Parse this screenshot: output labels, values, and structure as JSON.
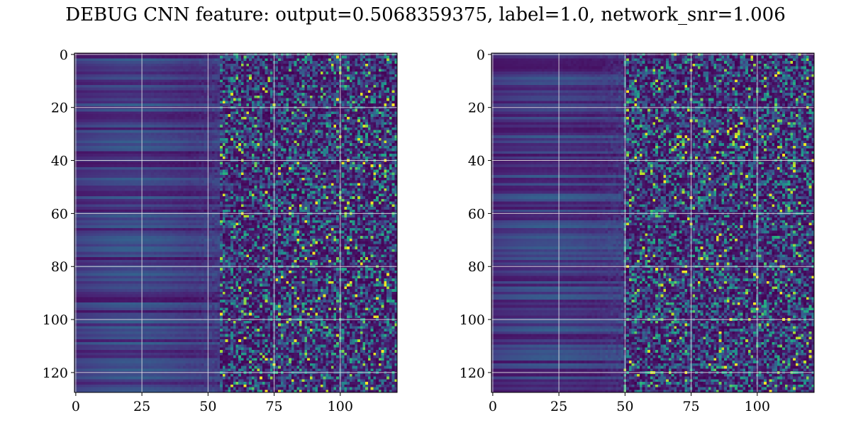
{
  "figure": {
    "title": "DEBUG CNN feature: output=0.5068359375, label=1.0, network_snr=1.006"
  },
  "colors": {
    "colormap": "viridis",
    "grid": "#e6e6e6",
    "axis": "#000000",
    "background": "#ffffff"
  },
  "chart_data": [
    {
      "type": "heatmap",
      "panel": "left",
      "colormap": "viridis",
      "grid": true,
      "y_axis_inverted": true,
      "n_rows": 128,
      "n_cols": 122,
      "xlim": [
        -0.5,
        121.5
      ],
      "ylim": [
        127.5,
        -0.5
      ],
      "x_ticks": [
        0,
        25,
        50,
        75,
        100
      ],
      "x_tick_labels": [
        "0",
        "25",
        "50",
        "75",
        "100"
      ],
      "y_ticks": [
        0,
        20,
        40,
        60,
        80,
        100,
        120
      ],
      "y_tick_labels": [
        "0",
        "20",
        "40",
        "60",
        "80",
        "100",
        "120"
      ],
      "pattern": "columns 0-55 smooth low values with horizontal banding; columns 55-122 noisy with scattered bright pixels",
      "seed": 7
    },
    {
      "type": "heatmap",
      "panel": "right",
      "colormap": "viridis",
      "grid": true,
      "y_axis_inverted": true,
      "n_rows": 128,
      "n_cols": 122,
      "xlim": [
        -0.5,
        121.5
      ],
      "ylim": [
        127.5,
        -0.5
      ],
      "x_ticks": [
        0,
        25,
        50,
        75,
        100
      ],
      "x_tick_labels": [
        "0",
        "25",
        "50",
        "75",
        "100"
      ],
      "y_ticks": [
        0,
        20,
        40,
        60,
        80,
        100,
        120
      ],
      "y_tick_labels": [
        "0",
        "20",
        "40",
        "60",
        "80",
        "100",
        "120"
      ],
      "pattern": "columns 0-50 smooth low values with horizontal banding; columns 50-122 noisy with scattered bright pixels",
      "seed": 13
    }
  ]
}
